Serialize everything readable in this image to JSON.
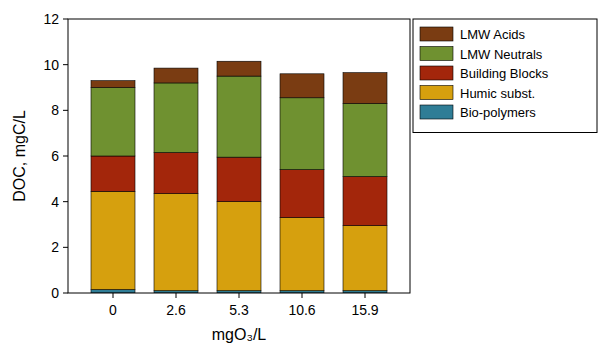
{
  "chart_data": {
    "type": "bar",
    "stacked": true,
    "x_label": "mgO₃/L",
    "y_label": "DOC, mgC/L",
    "categories": [
      "0",
      "2.6",
      "5.3",
      "10.6",
      "15.9"
    ],
    "series": [
      {
        "name": "Bio-polymers",
        "color": "#2f7d96",
        "values": [
          0.15,
          0.1,
          0.1,
          0.1,
          0.1
        ]
      },
      {
        "name": "Humic subst.",
        "color": "#d6a00e",
        "values": [
          4.3,
          4.25,
          3.9,
          3.2,
          2.85
        ]
      },
      {
        "name": "Building Blocks",
        "color": "#a3260b",
        "values": [
          1.55,
          1.8,
          1.95,
          2.1,
          2.15
        ]
      },
      {
        "name": "LMW Neutrals",
        "color": "#6f9130",
        "values": [
          3.0,
          3.05,
          3.55,
          3.15,
          3.2
        ]
      },
      {
        "name": "LMW Acids",
        "color": "#7a3c12",
        "values": [
          0.3,
          0.65,
          0.65,
          1.05,
          1.35
        ]
      }
    ],
    "ylim": [
      0,
      12
    ],
    "yticks": [
      0,
      2,
      4,
      6,
      8,
      10,
      12
    ],
    "grid": false,
    "legend": "right"
  }
}
